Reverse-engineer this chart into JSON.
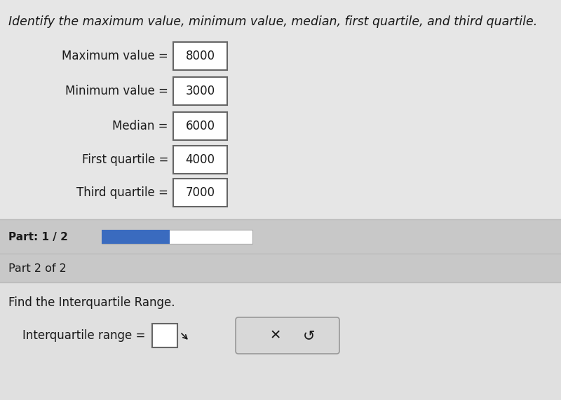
{
  "title": "Identify the maximum value, minimum value, median, first quartile, and third quartile.",
  "title_fontsize": 12.5,
  "bg_top": "#e6e6e6",
  "bg_mid": "#c8c8c8",
  "bg_part2_header": "#c8c8c8",
  "bg_bottom": "#e0e0e0",
  "labels": [
    "Maximum value",
    "Minimum value",
    "Median",
    "First quartile",
    "Third quartile"
  ],
  "values": [
    "8000",
    "3000",
    "6000",
    "4000",
    "7000"
  ],
  "part_label": "Part: 1 / 2",
  "part_bar_filled_color": "#3a6bbf",
  "part2_title": "Part 2 of 2",
  "part2_instruction": "Find the Interquartile Range.",
  "part2_answer_label": "Interquartile range =",
  "font_color": "#1a1a1a",
  "box_border_color": "#666666",
  "value_box_fill": "#ffffff",
  "separator_color": "#bbbbbb",
  "label_font_size": 12,
  "value_font_size": 12
}
